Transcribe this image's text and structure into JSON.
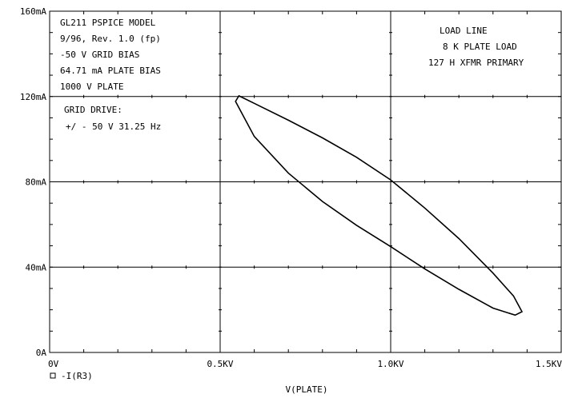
{
  "chart_data": {
    "type": "line",
    "xlabel": "V(PLATE)",
    "x_ticks": [
      {
        "value": 0,
        "label": "0V"
      },
      {
        "value": 500,
        "label": "0.5KV"
      },
      {
        "value": 1000,
        "label": "1.0KV"
      },
      {
        "value": 1500,
        "label": "1.5KV"
      }
    ],
    "y_ticks": [
      {
        "value": 0,
        "label": "0A"
      },
      {
        "value": 40,
        "label": "40mA"
      },
      {
        "value": 80,
        "label": "80mA"
      },
      {
        "value": 120,
        "label": "120mA"
      },
      {
        "value": 160,
        "label": "160mA"
      }
    ],
    "xlim": [
      0,
      1500
    ],
    "ylim": [
      0,
      160
    ],
    "grid": true,
    "legend_position": "bottom-left",
    "series": [
      {
        "name": "-I(R3)",
        "marker": "square",
        "color": "#000000",
        "x": [
          555,
          600,
          700,
          800,
          900,
          1000,
          1100,
          1200,
          1300,
          1360,
          1385,
          1365,
          1300,
          1200,
          1100,
          1000,
          900,
          800,
          700,
          600,
          545,
          555
        ],
        "y": [
          120.3,
          116.8,
          108.9,
          100.6,
          91.5,
          80.9,
          67.7,
          53.4,
          37.2,
          26.5,
          19.1,
          17.5,
          20.8,
          29.6,
          39.2,
          49.6,
          59.6,
          70.8,
          84.1,
          101.3,
          117.7,
          120.3
        ]
      }
    ],
    "annotations": [
      "GL211 PSPICE MODEL",
      "9/96, Rev. 1.0  (fp)",
      "-50 V GRID BIAS",
      "64.71 mA PLATE BIAS",
      "1000 V PLATE",
      "GRID DRIVE:",
      "+/ - 50 V 31.25 Hz",
      "LOAD LINE",
      "8 K PLATE LOAD",
      "127 H XFMR PRIMARY"
    ]
  }
}
